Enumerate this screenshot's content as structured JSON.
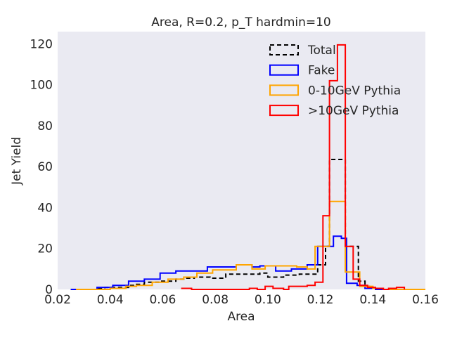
{
  "chart_data": {
    "type": "step",
    "title": "Area, R=0.2, p_T hardmin=10",
    "xlabel": "Area",
    "ylabel": "Jet Yield",
    "xlim": [
      0.02,
      0.16
    ],
    "ylim": [
      0,
      126
    ],
    "xticks": [
      "0.02",
      "0.04",
      "0.06",
      "0.08",
      "0.10",
      "0.12",
      "0.14",
      "0.16"
    ],
    "yticks": [
      "0",
      "20",
      "40",
      "60",
      "80",
      "100",
      "120"
    ],
    "grid": false,
    "legend_position": "top-right",
    "background": "#EAEAF2",
    "series": [
      {
        "name": "Total",
        "color": "#000000",
        "dashed": true,
        "points": [
          [
            0.025,
            0
          ],
          [
            0.035,
            0.5
          ],
          [
            0.038,
            1
          ],
          [
            0.044,
            1
          ],
          [
            0.047,
            2
          ],
          [
            0.05,
            2.5
          ],
          [
            0.053,
            3.5
          ],
          [
            0.056,
            3.5
          ],
          [
            0.059,
            4
          ],
          [
            0.062,
            4
          ],
          [
            0.065,
            5
          ],
          [
            0.068,
            5.5
          ],
          [
            0.072,
            6
          ],
          [
            0.078,
            5.5
          ],
          [
            0.084,
            7.5
          ],
          [
            0.09,
            7.5
          ],
          [
            0.097,
            8
          ],
          [
            0.1,
            6
          ],
          [
            0.106,
            7
          ],
          [
            0.112,
            7.5
          ],
          [
            0.119,
            12
          ],
          [
            0.122,
            21
          ],
          [
            0.1235,
            63.5
          ],
          [
            0.1295,
            21
          ],
          [
            0.1345,
            4
          ],
          [
            0.137,
            1.5
          ],
          [
            0.14,
            0.5
          ],
          [
            0.144,
            0
          ],
          [
            0.16,
            0
          ]
        ]
      },
      {
        "name": "Fake",
        "color": "#0000FF",
        "dashed": false,
        "points": [
          [
            0.025,
            0
          ],
          [
            0.035,
            1
          ],
          [
            0.041,
            2
          ],
          [
            0.047,
            4
          ],
          [
            0.053,
            5
          ],
          [
            0.059,
            8
          ],
          [
            0.065,
            9
          ],
          [
            0.071,
            9
          ],
          [
            0.077,
            11
          ],
          [
            0.083,
            11
          ],
          [
            0.088,
            12
          ],
          [
            0.094,
            11
          ],
          [
            0.097,
            11.5
          ],
          [
            0.103,
            9
          ],
          [
            0.109,
            10
          ],
          [
            0.115,
            12
          ],
          [
            0.119,
            21
          ],
          [
            0.122,
            21
          ],
          [
            0.125,
            26
          ],
          [
            0.128,
            25
          ],
          [
            0.13,
            3
          ],
          [
            0.134,
            2
          ],
          [
            0.137,
            0.5
          ],
          [
            0.141,
            0
          ],
          [
            0.16,
            0
          ]
        ]
      },
      {
        "name": "0-10GeV Pythia",
        "color": "#FFA500",
        "dashed": false,
        "points": [
          [
            0.027,
            0
          ],
          [
            0.04,
            0.5
          ],
          [
            0.046,
            1.5
          ],
          [
            0.05,
            2
          ],
          [
            0.056,
            3.5
          ],
          [
            0.062,
            5
          ],
          [
            0.068,
            6
          ],
          [
            0.073,
            8
          ],
          [
            0.079,
            9.5
          ],
          [
            0.084,
            9.5
          ],
          [
            0.088,
            12
          ],
          [
            0.094,
            10
          ],
          [
            0.099,
            11.5
          ],
          [
            0.105,
            11.5
          ],
          [
            0.111,
            11
          ],
          [
            0.115,
            10
          ],
          [
            0.118,
            21
          ],
          [
            0.122,
            21
          ],
          [
            0.1235,
            43
          ],
          [
            0.1295,
            8.5
          ],
          [
            0.135,
            1.5
          ],
          [
            0.14,
            0.5
          ],
          [
            0.144,
            0
          ],
          [
            0.16,
            0
          ]
        ]
      },
      {
        "name": ">10GeV Pythia",
        "color": "#FF0000",
        "dashed": false,
        "points": [
          [
            0.067,
            0.5
          ],
          [
            0.071,
            0
          ],
          [
            0.085,
            0
          ],
          [
            0.093,
            0.5
          ],
          [
            0.096,
            0
          ],
          [
            0.099,
            1.5
          ],
          [
            0.102,
            0.5
          ],
          [
            0.106,
            0
          ],
          [
            0.108,
            1.5
          ],
          [
            0.115,
            2
          ],
          [
            0.118,
            3.5
          ],
          [
            0.121,
            36
          ],
          [
            0.1235,
            102
          ],
          [
            0.1265,
            119.5
          ],
          [
            0.1295,
            21
          ],
          [
            0.1325,
            5
          ],
          [
            0.135,
            2
          ],
          [
            0.138,
            1
          ],
          [
            0.141,
            0.5
          ],
          [
            0.144,
            0
          ],
          [
            0.146,
            0.5
          ],
          [
            0.149,
            1
          ],
          [
            0.152,
            0
          ]
        ]
      }
    ]
  }
}
